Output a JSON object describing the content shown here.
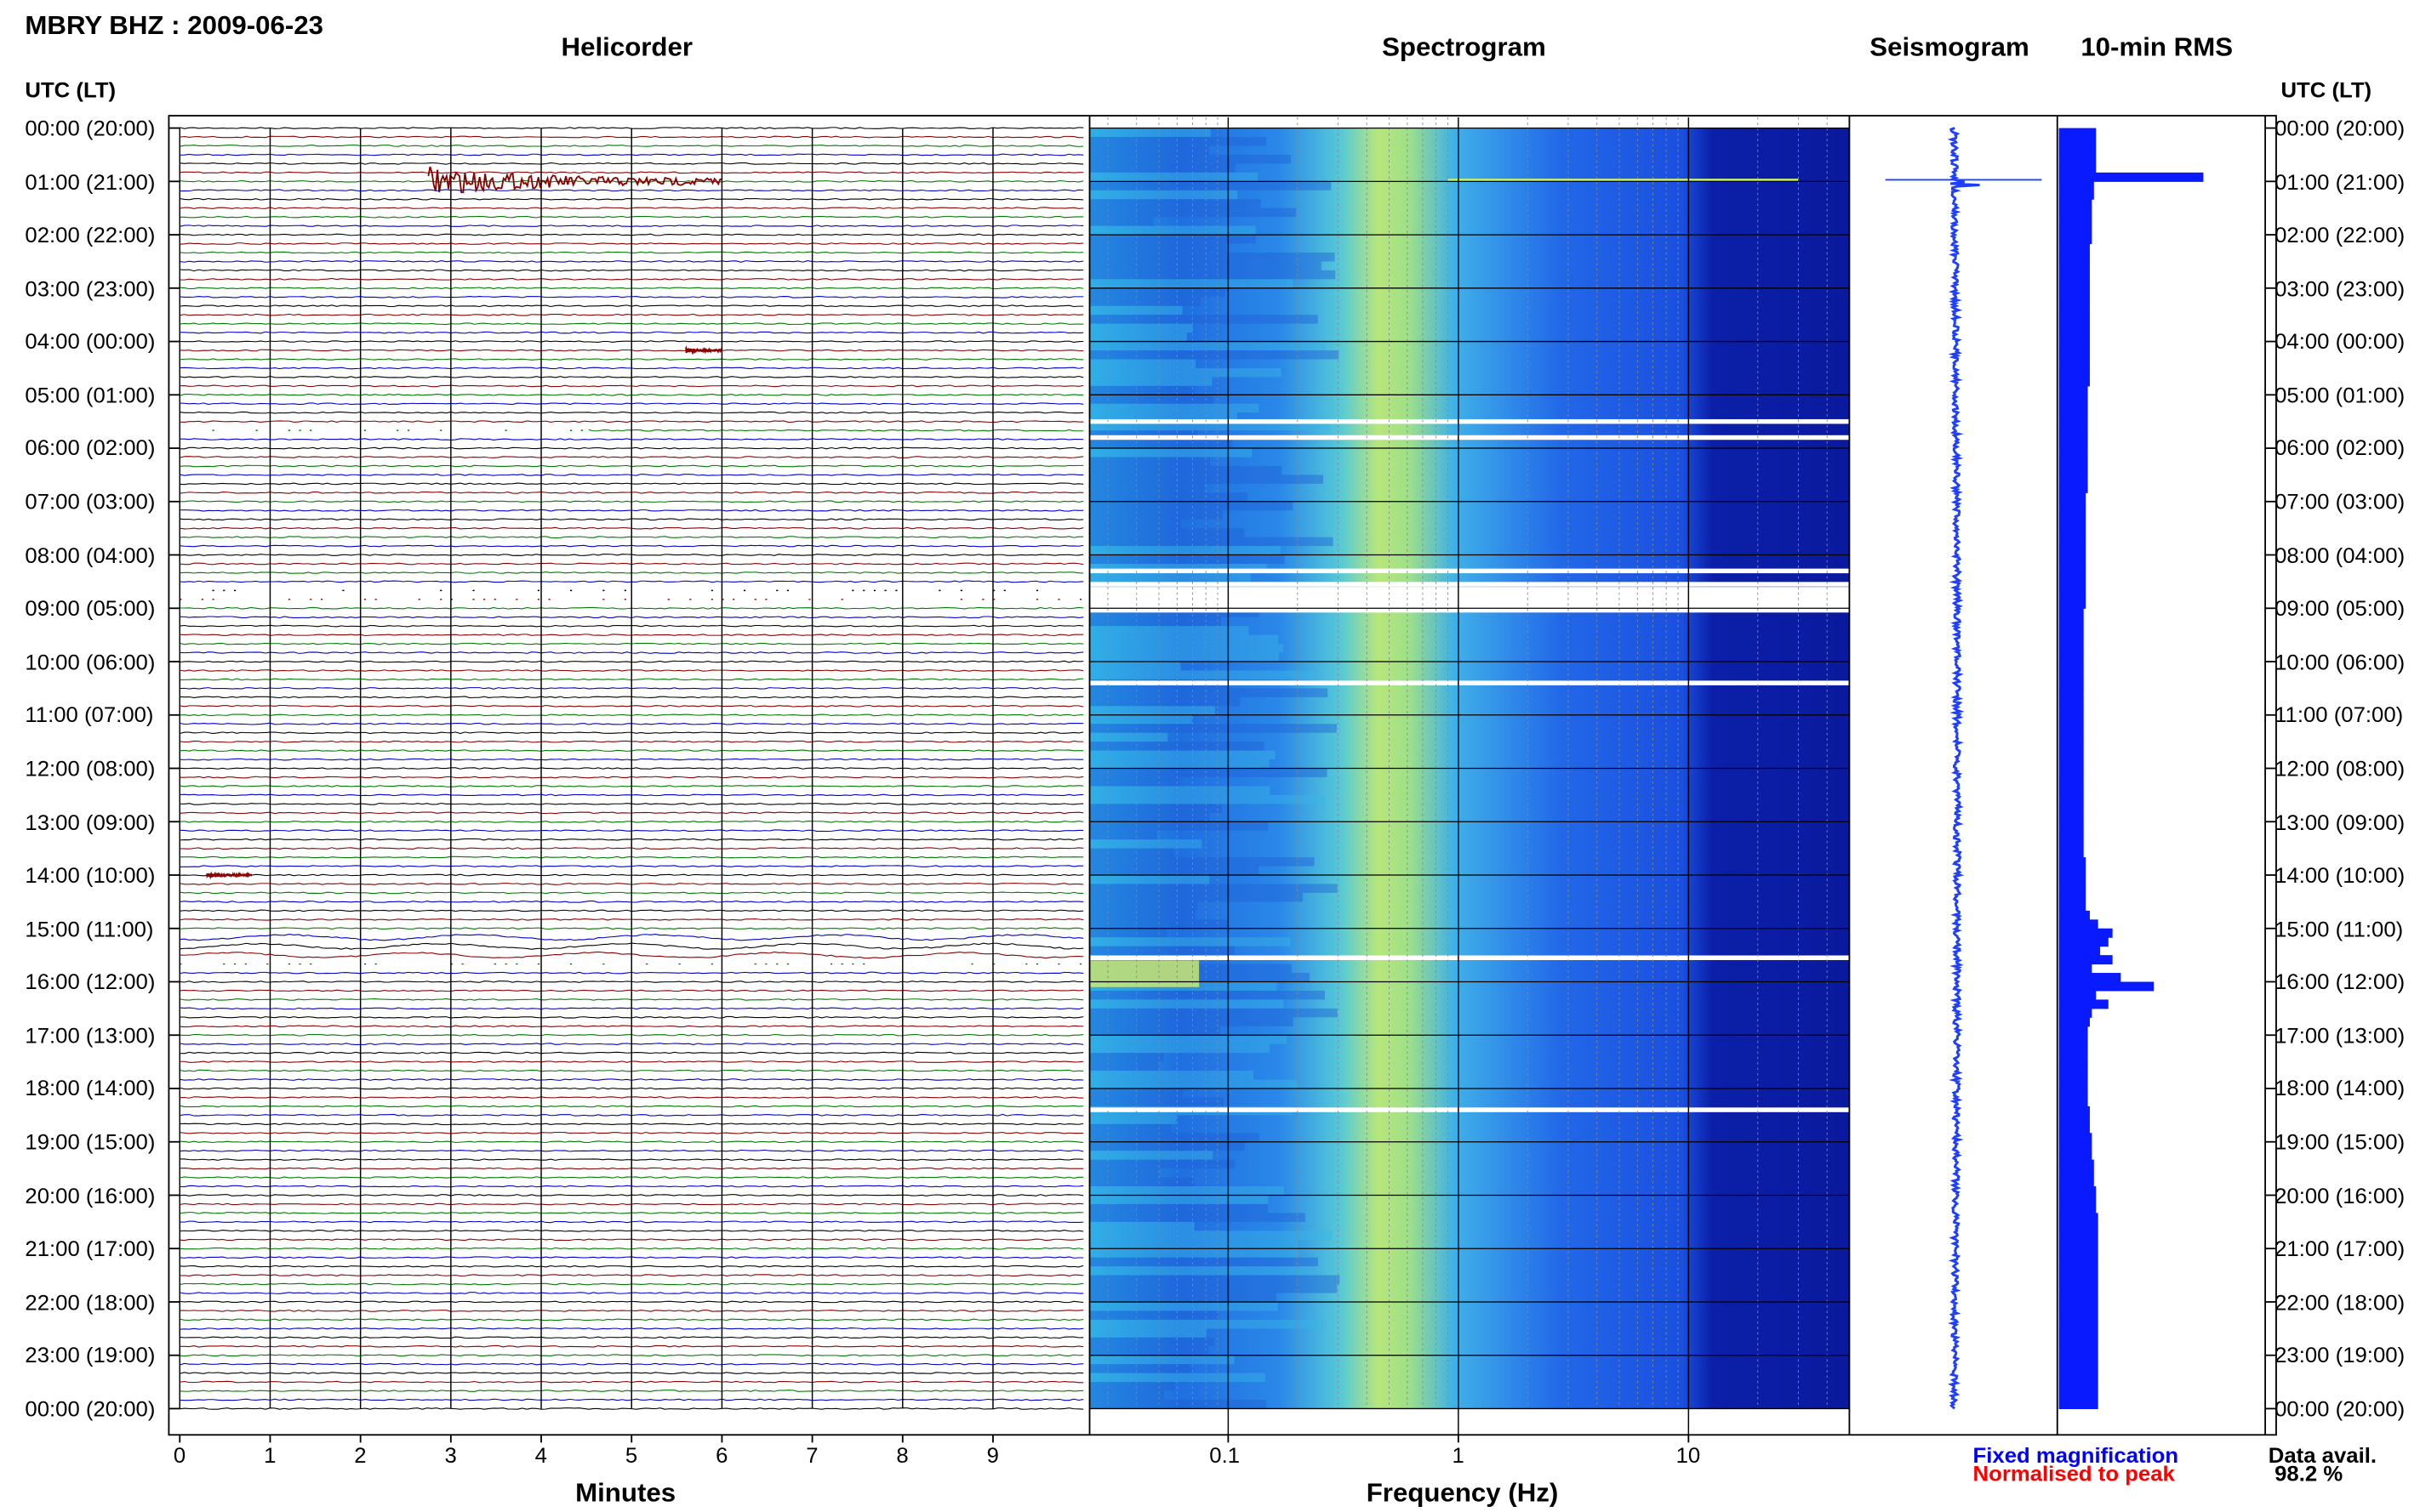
{
  "title": "MBRY BHZ : 2009-06-23",
  "panels": {
    "helicorder": "Helicorder",
    "spectrogram": "Spectrogram",
    "seismogram": "Seismogram",
    "rms": "10-min RMS"
  },
  "time_axis_header": "UTC (LT)",
  "time_labels": [
    "00:00 (20:00)",
    "01:00 (21:00)",
    "02:00 (22:00)",
    "03:00 (23:00)",
    "04:00 (00:00)",
    "05:00 (01:00)",
    "06:00 (02:00)",
    "07:00 (03:00)",
    "08:00 (04:00)",
    "09:00 (05:00)",
    "10:00 (06:00)",
    "11:00 (07:00)",
    "12:00 (08:00)",
    "13:00 (09:00)",
    "14:00 (10:00)",
    "15:00 (11:00)",
    "16:00 (12:00)",
    "17:00 (13:00)",
    "18:00 (14:00)",
    "19:00 (15:00)",
    "20:00 (16:00)",
    "21:00 (17:00)",
    "22:00 (18:00)",
    "23:00 (19:00)",
    "00:00 (20:00)"
  ],
  "helicorder_axis": {
    "label": "Minutes",
    "ticks": [
      "0",
      "1",
      "2",
      "3",
      "4",
      "5",
      "6",
      "7",
      "8",
      "9"
    ]
  },
  "spectrogram_axis": {
    "label": "Frequency (Hz)",
    "ticks": [
      "0.1",
      "1",
      "10"
    ]
  },
  "legend": {
    "fixed": "Fixed magnification",
    "normalised": "Normalised to peak"
  },
  "data_avail": {
    "label": "Data avail.",
    "value": "98.2 %"
  },
  "colors": {
    "trace_black": "#000000",
    "trace_red": "#8b0000",
    "trace_green": "#007a00",
    "trace_blue": "#0000cc",
    "seis": "#1f3fff",
    "rms": "#0a1aff",
    "fixed": "#0000ff",
    "normalised": "#ff0000"
  },
  "chart_data": {
    "type": "heatmap",
    "rows_per_hour": 6,
    "minutes_per_row": 10,
    "helicorder": {
      "x_unit": "minutes",
      "xlim": [
        0,
        10
      ],
      "events": [
        {
          "hour": 1,
          "row": 0,
          "start_min": 2.75,
          "end_min": 6.0,
          "amplitude": 8,
          "color": "trace_red"
        },
        {
          "hour": 4,
          "row": 1,
          "start_min": 5.6,
          "end_min": 6.0,
          "amplitude": 1.5,
          "color": "trace_red"
        },
        {
          "hour": 14,
          "row": 0,
          "start_min": 0.3,
          "end_min": 0.8,
          "amplitude": 1.5,
          "color": "trace_red"
        }
      ],
      "gaps": [
        {
          "hour": 5,
          "row": 4,
          "start_min": 0,
          "end_min": 4.5
        },
        {
          "hour": 8,
          "row": 4,
          "start_min": 0,
          "end_min": 10
        },
        {
          "hour": 8,
          "row": 5,
          "start_min": 0,
          "end_min": 10
        },
        {
          "hour": 15,
          "row": 4,
          "start_min": 0,
          "end_min": 10
        }
      ]
    },
    "spectrogram": {
      "x_unit": "Hz",
      "xscale": "log",
      "xlim": [
        0.025,
        50
      ],
      "peak_band_hz": [
        0.2,
        0.6
      ],
      "gap_hours": [
        5.5,
        5.8,
        8.3,
        8.55,
        8.85,
        10.4,
        15.55,
        18.4
      ]
    },
    "rms": {
      "x_unit": "relative",
      "values": [
        1.8,
        1.8,
        1.8,
        1.8,
        1.8,
        7.0,
        1.7,
        1.7,
        1.6,
        1.6,
        1.6,
        1.6,
        1.6,
        1.5,
        1.5,
        1.5,
        1.5,
        1.5,
        1.5,
        1.5,
        1.5,
        1.5,
        1.5,
        1.5,
        1.5,
        1.5,
        1.5,
        1.5,
        1.5,
        1.4,
        1.4,
        1.4,
        1.4,
        1.4,
        1.4,
        1.4,
        1.4,
        1.4,
        1.4,
        1.4,
        1.4,
        1.3,
        1.3,
        1.3,
        1.3,
        1.3,
        1.3,
        1.3,
        1.3,
        1.3,
        1.3,
        1.3,
        1.3,
        1.3,
        1.2,
        1.2,
        1.2,
        1.2,
        1.2,
        1.2,
        1.2,
        1.2,
        1.2,
        1.2,
        1.2,
        1.2,
        1.2,
        1.2,
        1.2,
        1.2,
        1.2,
        1.2,
        1.2,
        1.2,
        1.2,
        1.2,
        1.2,
        1.2,
        1.2,
        1.2,
        1.2,
        1.2,
        1.3,
        1.3,
        1.3,
        1.3,
        1.3,
        1.3,
        1.5,
        1.9,
        2.6,
        2.4,
        2.0,
        2.6,
        1.6,
        3.0,
        4.6,
        1.8,
        2.4,
        1.6,
        1.5,
        1.4,
        1.4,
        1.4,
        1.4,
        1.4,
        1.4,
        1.4,
        1.4,
        1.4,
        1.5,
        1.5,
        1.5,
        1.6,
        1.6,
        1.6,
        1.7,
        1.7,
        1.7,
        1.8,
        1.8,
        1.8,
        1.9,
        1.9,
        1.9,
        1.9,
        1.9,
        1.9,
        1.9,
        1.9,
        1.9,
        1.9,
        1.9,
        1.9,
        1.9,
        1.9,
        1.9,
        1.9,
        1.9,
        1.9,
        1.9,
        1.9,
        1.9,
        1.9
      ]
    },
    "seismogram": {
      "events": [
        {
          "hour": 1.0,
          "amplitude": 8
        },
        {
          "hour": 14.7,
          "amplitude": 1.2
        },
        {
          "hour": 15.6,
          "amplitude": 1.0
        }
      ]
    }
  }
}
